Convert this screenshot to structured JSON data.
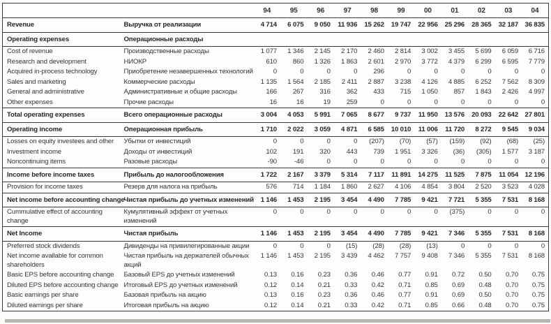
{
  "colors": {
    "ink": "#333333",
    "rule": "#3a3a3a",
    "page_edge_shadow": "#b8b6b2"
  },
  "table": {
    "years": [
      "94",
      "95",
      "96",
      "97",
      "98",
      "99",
      "00",
      "01",
      "02",
      "03",
      "04"
    ],
    "rows": [
      {
        "style": "bold",
        "en": "Revenue",
        "ru": "Выручка от реализации",
        "values": [
          "4 714",
          "6 075",
          "9 050",
          "11 936",
          "15 262",
          "19 747",
          "22 956",
          "25 296",
          "28 365",
          "32 187",
          "36 835"
        ]
      },
      {
        "style": "section",
        "en": "Operating expenses",
        "ru": "Операционные расходы",
        "values": []
      },
      {
        "style": "normal",
        "en": "Cost of revenue",
        "ru": "Производственные расходы",
        "values": [
          "1 077",
          "1 346",
          "2 145",
          "2 170",
          "2 460",
          "2 814",
          "3 002",
          "3 455",
          "5 699",
          "6 059",
          "6 716"
        ]
      },
      {
        "style": "normal",
        "en": "Research and development",
        "ru": "НИОКР",
        "values": [
          "610",
          "860",
          "1 326",
          "1 863",
          "2 601",
          "2 970",
          "3 772",
          "4 379",
          "6 299",
          "6 595",
          "7 779"
        ]
      },
      {
        "style": "normal",
        "en": "Acquired in-process technology",
        "ru": "Приобретение незавершенных технологий",
        "values": [
          "0",
          "0",
          "0",
          "0",
          "296",
          "0",
          "0",
          "0",
          "0",
          "0",
          "0"
        ]
      },
      {
        "style": "normal",
        "en": "Sales and marketing",
        "ru": "Коммерческие расходы",
        "values": [
          "1 135",
          "1 564",
          "2 185",
          "2 411",
          "2 887",
          "3 238",
          "4 126",
          "4 885",
          "6 252",
          "7 562",
          "8 309"
        ]
      },
      {
        "style": "normal",
        "en": "General and administrative",
        "ru": "Административные и общие расходы",
        "values": [
          "166",
          "267",
          "316",
          "362",
          "433",
          "715",
          "1 050",
          "857",
          "1 843",
          "2 426",
          "4 997"
        ]
      },
      {
        "style": "normal",
        "en": "Other expenses",
        "ru": "Прочие расходы",
        "values": [
          "16",
          "16",
          "19",
          "259",
          "0",
          "0",
          "0",
          "0",
          "0",
          "0",
          "0"
        ]
      },
      {
        "style": "bold",
        "en": "Total operating expenses",
        "ru": "Всего операционные расходы",
        "values": [
          "3 004",
          "4 053",
          "5 991",
          "7 065",
          "8 677",
          "9 737",
          "11 950",
          "13 576",
          "20 093",
          "22 642",
          "27 801"
        ]
      },
      {
        "style": "bold",
        "en": "Operating income",
        "ru": "Операционная прибыль",
        "values": [
          "1 710",
          "2 022",
          "3 059",
          "4 871",
          "6 585",
          "10 010",
          "11 006",
          "11 720",
          "8 272",
          "9 545",
          "9 034"
        ]
      },
      {
        "style": "normal",
        "en": "Losses on equity investees and other",
        "ru": "Убытки от инвестиций",
        "values": [
          "0",
          "0",
          "0",
          "0",
          "(207)",
          "(70)",
          "(57)",
          "(159)",
          "(92)",
          "(68)",
          "(25)"
        ]
      },
      {
        "style": "normal",
        "en": "Investment income",
        "ru": "Доходы от инвестиций",
        "values": [
          "102",
          "191",
          "320",
          "443",
          "739",
          "1 951",
          "3 326",
          "(36)",
          "(305)",
          "1 577",
          "3 187"
        ]
      },
      {
        "style": "normal",
        "en": "Noncontinuing items",
        "ru": "Разовые расходы",
        "values": [
          "-90",
          "-46",
          "0",
          "0",
          "0",
          "0",
          "0",
          "0",
          "0",
          "0",
          "0"
        ]
      },
      {
        "style": "bold",
        "en": "Income before income taxes",
        "ru": "Прибыль до налогообложения",
        "values": [
          "1 722",
          "2 167",
          "3 379",
          "5 314",
          "7 117",
          "11 891",
          "14 275",
          "11 525",
          "7 875",
          "11 054",
          "12 196"
        ]
      },
      {
        "style": "normal",
        "en": "Provision for income taxes",
        "ru": "Резерв для налога на прибыль",
        "values": [
          "576",
          "714",
          "1 184",
          "1 860",
          "2 627",
          "4 106",
          "4 854",
          "3 804",
          "2 520",
          "3 523",
          "4 028"
        ]
      },
      {
        "style": "bold",
        "en": "Net income before accounting change",
        "ru": "Чистая прибыль до учетных изменений",
        "values": [
          "1 146",
          "1 453",
          "2 195",
          "3 454",
          "4 490",
          "7 785",
          "9 421",
          "7 721",
          "5 355",
          "7 531",
          "8 168"
        ]
      },
      {
        "style": "normal",
        "wrap": true,
        "en": "Cummulative effect of accounting change",
        "ru": "Кумулятивный эффект от учетных изменений",
        "values": [
          "0",
          "0",
          "0",
          "0",
          "0",
          "0",
          "0",
          "(375)",
          "0",
          "0",
          "0"
        ]
      },
      {
        "style": "bold",
        "en": "Net Income",
        "ru": "Чистая прибыль",
        "values": [
          "1 146",
          "1 453",
          "2 195",
          "3 454",
          "4 490",
          "7 785",
          "9 421",
          "7 346",
          "5 355",
          "7 531",
          "8 168"
        ]
      },
      {
        "style": "normal",
        "en": "Preferred stock dividends",
        "ru": "Дивиденды на привилегированные акции",
        "values": [
          "0",
          "0",
          "0",
          "(15)",
          "(28)",
          "(28)",
          "(13)",
          "0",
          "0",
          "0",
          "0"
        ]
      },
      {
        "style": "normal",
        "wrap": true,
        "en": "Net income available for common shareholders",
        "ru": "Чистая прибыль на держателей обычных акций",
        "values": [
          "1 146",
          "1 453",
          "2 195",
          "3 439",
          "4 462",
          "7 757",
          "9 408",
          "7 346",
          "5 355",
          "7 531",
          "8 168"
        ]
      },
      {
        "style": "normal",
        "en": "Basic EPS before accounting change",
        "ru": "Базовый EPS до учетных изменений",
        "values": [
          "0.13",
          "0.16",
          "0.23",
          "0.36",
          "0.46",
          "0.77",
          "0.91",
          "0.72",
          "0.50",
          "0.70",
          "0.75"
        ]
      },
      {
        "style": "normal",
        "en": "Diluted EPS before accounting change",
        "ru": "Итоговый EPS до учетных изменений",
        "values": [
          "0.12",
          "0.14",
          "0.21",
          "0.33",
          "0.42",
          "0.71",
          "0.85",
          "0.69",
          "0.48",
          "0.70",
          "0.75"
        ]
      },
      {
        "style": "normal",
        "en": "Basic earnings per share",
        "ru": "Базовая прибыль на акцию",
        "values": [
          "0.13",
          "0.16",
          "0.23",
          "0.36",
          "0.46",
          "0.77",
          "0.91",
          "0.69",
          "0.50",
          "0.70",
          "0.75"
        ]
      },
      {
        "style": "normal",
        "en": "Diluted earnings per share",
        "ru": "Итоговая прибыль на акцию",
        "values": [
          "0.12",
          "0.14",
          "0.21",
          "0.33",
          "0.42",
          "0.71",
          "0.85",
          "0.66",
          "0.48",
          "0.70",
          "0.75"
        ]
      }
    ]
  }
}
